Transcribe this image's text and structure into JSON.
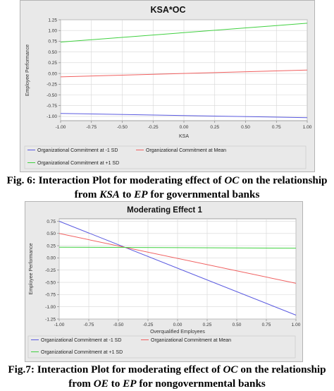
{
  "charts": [
    {
      "caption_parts": [
        "Fig. 6: Interaction Plot for moderating effect of ",
        "OC",
        " on the relationship",
        "from ",
        "KSA",
        " to ",
        "EP",
        " for governmental banks"
      ],
      "chart_data": {
        "type": "line",
        "title": "KSA*OC",
        "xlabel": "KSA",
        "ylabel": "Employee Performance",
        "xlim": [
          -1.0,
          1.0
        ],
        "ylim": [
          -1.1,
          1.25
        ],
        "x_ticks": [
          "-1.00",
          "-0.75",
          "-0.50",
          "-0.25",
          "0.00",
          "0.25",
          "0.50",
          "0.75",
          "1.00"
        ],
        "y_ticks": [
          "1.25",
          "1.00",
          "0.75",
          "0.50",
          "0.25",
          "0.00",
          "-0.25",
          "-0.50",
          "-0.75",
          "-1.00"
        ],
        "grid": true,
        "legend_position": "bottom",
        "series": [
          {
            "name": "Organizational Commitment at -1 SD",
            "color": "#5a5ae0",
            "x": [
              -1.0,
              1.0
            ],
            "values": [
              -0.93,
              -1.03
            ]
          },
          {
            "name": "Organizational Commitment at Mean",
            "color": "#f06060",
            "x": [
              -1.0,
              1.0
            ],
            "values": [
              -0.08,
              0.08
            ]
          },
          {
            "name": "Organizational Commitment at +1 SD",
            "color": "#40d040",
            "x": [
              -1.0,
              1.0
            ],
            "values": [
              0.73,
              1.17
            ]
          }
        ]
      }
    },
    {
      "caption_parts": [
        "Fig.7: Interaction Plot for moderating effect of ",
        "OC",
        " on the relationship",
        "from ",
        "OE",
        " to ",
        "EP",
        " for nongovernmental banks"
      ],
      "chart_data": {
        "type": "line",
        "title": "Moderating Effect 1",
        "xlabel": "Overqualified Employees",
        "ylabel": "Employee Performance",
        "xlim": [
          -1.0,
          1.0
        ],
        "ylim": [
          -1.25,
          0.8
        ],
        "x_ticks": [
          "-1.00",
          "-0.75",
          "-0.50",
          "-0.25",
          "0.00",
          "0.25",
          "0.50",
          "0.75",
          "1.00"
        ],
        "y_ticks": [
          "0.75",
          "0.50",
          "0.25",
          "0.00",
          "-0.25",
          "-0.50",
          "-0.75",
          "-1.00",
          "-1.25"
        ],
        "grid": true,
        "legend_position": "bottom",
        "series": [
          {
            "name": "Organizational Commitment at -1 SD",
            "color": "#5a5ae0",
            "x": [
              -1.0,
              1.0
            ],
            "values": [
              0.75,
              -1.17
            ]
          },
          {
            "name": "Organizational Commitment at Mean",
            "color": "#f06060",
            "x": [
              -1.0,
              1.0
            ],
            "values": [
              0.5,
              -0.52
            ]
          },
          {
            "name": "Organizational Commitment at +1 SD",
            "color": "#40d040",
            "x": [
              -1.0,
              1.0
            ],
            "values": [
              0.22,
              0.2
            ]
          }
        ]
      }
    }
  ]
}
